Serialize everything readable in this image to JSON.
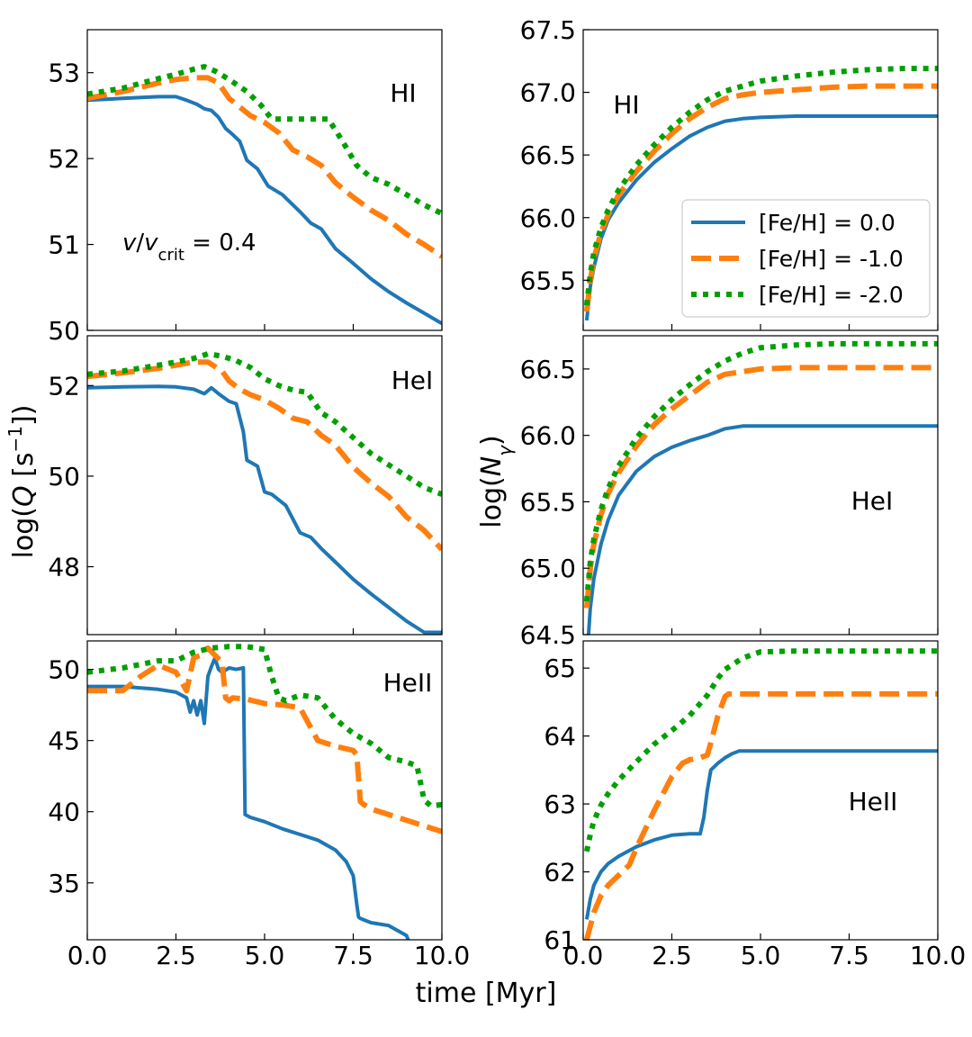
{
  "figure": {
    "xlabel": "time [Myr]",
    "ylabel_left": "log(Q [s⁻¹])",
    "ylabel_right": "log(Nγ)",
    "annotation_left": "v/v_crit = 0.4",
    "colors": {
      "solar": "#1f77b4",
      "m1": "#ff7f0e",
      "m2": "#00a000"
    }
  },
  "legend": [
    {
      "label": "[Fe/H] = 0.0",
      "style": "solid",
      "color": "#1f77b4"
    },
    {
      "label": "[Fe/H] = -1.0",
      "style": "dashed",
      "color": "#ff7f0e"
    },
    {
      "label": "[Fe/H] = -2.0",
      "style": "dotted",
      "color": "#00a000"
    }
  ],
  "chart_data": [
    {
      "type": "line",
      "panel": "Q-HI",
      "label": "HI",
      "xlim": [
        0,
        10
      ],
      "ylim": [
        50,
        53.5
      ],
      "yticks": [
        50,
        51,
        52,
        53
      ],
      "xticks": [
        0,
        2.5,
        5,
        7.5,
        10
      ],
      "xticklabels": [
        "0.0",
        "2.5",
        "5.0",
        "7.5",
        "10.0"
      ],
      "show_xticklabels": false,
      "annotation": "v/v_crit = 0.4",
      "series": [
        {
          "name": "[Fe/H] = 0.0",
          "x": [
            0,
            1,
            2,
            2.5,
            2.8,
            3.1,
            3.3,
            3.5,
            3.7,
            3.9,
            4.1,
            4.3,
            4.5,
            4.8,
            5.1,
            5.5,
            6,
            6.3,
            6.6,
            7,
            7.5,
            8,
            8.5,
            9,
            9.5,
            10
          ],
          "y": [
            52.68,
            52.7,
            52.72,
            52.72,
            52.68,
            52.63,
            52.58,
            52.56,
            52.48,
            52.35,
            52.28,
            52.2,
            51.98,
            51.88,
            51.68,
            51.58,
            51.38,
            51.25,
            51.18,
            50.95,
            50.78,
            50.6,
            50.45,
            50.32,
            50.2,
            50.08
          ]
        },
        {
          "name": "[Fe/H] = -1.0",
          "x": [
            0,
            1,
            2,
            2.5,
            3,
            3.4,
            3.7,
            4,
            4.3,
            4.6,
            5,
            5.4,
            5.8,
            6.2,
            6.6,
            7,
            7.5,
            8,
            8.5,
            9,
            9.5,
            10
          ],
          "y": [
            52.7,
            52.78,
            52.88,
            52.92,
            52.94,
            52.94,
            52.88,
            52.7,
            52.6,
            52.5,
            52.42,
            52.3,
            52.1,
            52.02,
            51.92,
            51.72,
            51.55,
            51.4,
            51.28,
            51.12,
            51.0,
            50.86
          ]
        },
        {
          "name": "[Fe/H] = -2.0",
          "x": [
            0,
            1,
            2,
            2.5,
            3,
            3.3,
            3.6,
            4,
            4.5,
            4.9,
            5.2,
            5.6,
            6,
            6.4,
            6.8,
            7.2,
            7.6,
            8,
            8.5,
            9,
            9.5,
            10
          ],
          "y": [
            52.75,
            52.82,
            52.93,
            52.98,
            53.04,
            53.07,
            53.02,
            52.92,
            52.78,
            52.62,
            52.46,
            52.46,
            52.46,
            52.46,
            52.46,
            52.2,
            51.92,
            51.78,
            51.7,
            51.58,
            51.46,
            51.36
          ]
        }
      ]
    },
    {
      "type": "line",
      "panel": "Q-HeI",
      "label": "HeI",
      "xlim": [
        0,
        10
      ],
      "ylim": [
        46.5,
        53.1
      ],
      "yticks": [
        48,
        50,
        52
      ],
      "xticks": [
        0,
        2.5,
        5,
        7.5,
        10
      ],
      "xticklabels": [
        "0.0",
        "2.5",
        "5.0",
        "7.5",
        "10.0"
      ],
      "show_xticklabels": false,
      "series": [
        {
          "name": "[Fe/H] = 0.0",
          "x": [
            0,
            1,
            2,
            2.5,
            3,
            3.3,
            3.5,
            3.7,
            4,
            4.2,
            4.4,
            4.5,
            4.8,
            5.0,
            5.2,
            5.6,
            6,
            6.3,
            6.6,
            7,
            7.5,
            8,
            8.5,
            9,
            9.5,
            10
          ],
          "y": [
            51.95,
            51.97,
            51.98,
            51.97,
            51.92,
            51.82,
            51.95,
            51.82,
            51.65,
            51.6,
            50.98,
            50.35,
            50.22,
            49.65,
            49.6,
            49.35,
            48.75,
            48.65,
            48.4,
            48.1,
            47.72,
            47.4,
            47.1,
            46.8,
            46.55,
            46.55
          ]
        },
        {
          "name": "[Fe/H] = -1.0",
          "x": [
            0,
            1,
            2,
            2.5,
            3,
            3.4,
            3.8,
            4,
            4.3,
            4.6,
            5,
            5.4,
            5.8,
            6.2,
            6.6,
            7,
            7.5,
            8,
            8.5,
            9,
            9.5,
            10
          ],
          "y": [
            52.2,
            52.28,
            52.38,
            52.45,
            52.52,
            52.52,
            52.32,
            52.1,
            51.92,
            51.8,
            51.68,
            51.5,
            51.28,
            51.2,
            50.9,
            50.68,
            50.2,
            49.85,
            49.55,
            49.1,
            48.8,
            48.38
          ]
        },
        {
          "name": "[Fe/H] = -2.0",
          "x": [
            0,
            1,
            2,
            2.5,
            3,
            3.4,
            3.8,
            4.2,
            4.6,
            5,
            5.4,
            5.8,
            6.2,
            6.6,
            7,
            7.5,
            8,
            8.5,
            9,
            9.5,
            10
          ],
          "y": [
            52.25,
            52.32,
            52.45,
            52.52,
            52.6,
            52.7,
            52.65,
            52.55,
            52.4,
            52.15,
            52.0,
            51.9,
            51.85,
            51.4,
            51.2,
            50.85,
            50.5,
            50.25,
            50.0,
            49.75,
            49.6
          ]
        }
      ]
    },
    {
      "type": "line",
      "panel": "Q-HeII",
      "label": "HeII",
      "xlim": [
        0,
        10
      ],
      "ylim": [
        31,
        52
      ],
      "yticks": [
        35,
        40,
        45,
        50
      ],
      "xticks": [
        0,
        2.5,
        5,
        7.5,
        10
      ],
      "xticklabels": [
        "0.0",
        "2.5",
        "5.0",
        "7.5",
        "10.0"
      ],
      "show_xticklabels": true,
      "series": [
        {
          "name": "[Fe/H] = 0.0",
          "x": [
            0,
            1,
            2,
            2.5,
            2.8,
            2.9,
            3.0,
            3.1,
            3.2,
            3.3,
            3.4,
            3.5,
            3.6,
            3.7,
            3.8,
            4.0,
            4.2,
            4.4,
            4.45,
            4.6,
            5.0,
            5.5,
            6,
            6.5,
            7,
            7.3,
            7.5,
            7.6,
            7.65,
            7.7,
            7.8,
            8,
            8.5,
            9,
            9.05
          ],
          "y": [
            48.8,
            48.8,
            48.6,
            48.4,
            48.0,
            47.0,
            47.8,
            46.8,
            47.8,
            46.2,
            49.5,
            50.2,
            50.8,
            50.0,
            49.8,
            50.1,
            50.0,
            50.1,
            39.8,
            39.6,
            39.3,
            38.8,
            38.4,
            38.0,
            37.3,
            36.5,
            35.5,
            33.5,
            32.6,
            32.5,
            32.4,
            32.2,
            32.0,
            31.3,
            31.0
          ]
        },
        {
          "name": "[Fe/H] = -1.0",
          "x": [
            0,
            1,
            1.5,
            2,
            2.5,
            2.8,
            3.0,
            3.2,
            3.4,
            3.6,
            3.8,
            3.9,
            4.0,
            4.1,
            4.5,
            5,
            5.5,
            6,
            6.5,
            7,
            7.5,
            7.6,
            7.7,
            7.8,
            8,
            8.5,
            9,
            9.5,
            10
          ],
          "y": [
            48.5,
            48.5,
            49.5,
            50.3,
            49.8,
            48.5,
            50.8,
            51.0,
            51.5,
            51.0,
            50.5,
            48.0,
            47.8,
            48.0,
            47.9,
            47.6,
            47.5,
            47.3,
            45.0,
            44.6,
            44.3,
            44.0,
            40.7,
            40.5,
            40.2,
            39.8,
            39.4,
            39.0,
            38.6
          ]
        },
        {
          "name": "[Fe/H] = -2.0",
          "x": [
            0,
            1,
            2,
            2.5,
            3,
            3.5,
            4,
            4.5,
            5,
            5.2,
            5.4,
            5.6,
            6,
            6.5,
            7,
            7.5,
            8,
            8.5,
            9,
            9.3,
            9.5,
            9.7,
            10
          ],
          "y": [
            49.8,
            50.1,
            50.6,
            50.6,
            51.2,
            51.5,
            51.6,
            51.6,
            51.4,
            49.5,
            48.0,
            47.8,
            48.2,
            48.0,
            46.5,
            45.5,
            44.8,
            43.8,
            43.5,
            43.2,
            40.8,
            40.4,
            40.5
          ]
        }
      ]
    },
    {
      "type": "line",
      "panel": "N-HI",
      "label": "HI",
      "xlim": [
        0,
        10
      ],
      "ylim": [
        65.1,
        67.5
      ],
      "yticks": [
        65.5,
        66.0,
        66.5,
        67.0,
        67.5
      ],
      "xticks": [
        0,
        2.5,
        5,
        7.5,
        10
      ],
      "xticklabels": [
        "0.0",
        "2.5",
        "5.0",
        "7.5",
        "10.0"
      ],
      "show_xticklabels": false,
      "series": [
        {
          "name": "[Fe/H] = 0.0",
          "x": [
            0.1,
            0.2,
            0.3,
            0.5,
            0.7,
            1,
            1.5,
            2,
            2.5,
            3,
            3.5,
            4,
            4.5,
            5,
            6,
            7,
            8,
            9,
            10
          ],
          "y": [
            65.18,
            65.45,
            65.6,
            65.83,
            65.98,
            66.12,
            66.3,
            66.44,
            66.55,
            66.65,
            66.72,
            66.77,
            66.79,
            66.8,
            66.81,
            66.81,
            66.81,
            66.81,
            66.81
          ]
        },
        {
          "name": "[Fe/H] = -1.0",
          "x": [
            0.1,
            0.2,
            0.3,
            0.5,
            0.7,
            1,
            1.5,
            2,
            2.5,
            3,
            3.5,
            4,
            4.5,
            5,
            6,
            7,
            8,
            9,
            10
          ],
          "y": [
            65.25,
            65.5,
            65.67,
            65.88,
            66.02,
            66.18,
            66.37,
            66.53,
            66.67,
            66.79,
            66.88,
            66.95,
            66.98,
            67.0,
            67.02,
            67.04,
            67.05,
            67.05,
            67.05
          ]
        },
        {
          "name": "[Fe/H] = -2.0",
          "x": [
            0.1,
            0.2,
            0.3,
            0.5,
            0.7,
            1,
            1.5,
            2,
            2.5,
            3,
            3.5,
            4,
            4.5,
            5,
            6,
            7,
            8,
            9,
            10
          ],
          "y": [
            65.3,
            65.55,
            65.72,
            65.92,
            66.06,
            66.22,
            66.42,
            66.58,
            66.72,
            66.84,
            66.94,
            67.01,
            67.05,
            67.09,
            67.13,
            67.16,
            67.18,
            67.19,
            67.19
          ]
        }
      ]
    },
    {
      "type": "line",
      "panel": "N-HeI",
      "label": "HeI",
      "xlim": [
        0,
        10
      ],
      "ylim": [
        64.5,
        66.75
      ],
      "yticks": [
        64.5,
        65.0,
        65.5,
        66.0,
        66.5
      ],
      "xticks": [
        0,
        2.5,
        5,
        7.5,
        10
      ],
      "xticklabels": [
        "0.0",
        "2.5",
        "5.0",
        "7.5",
        "10.0"
      ],
      "show_xticklabels": false,
      "series": [
        {
          "name": "[Fe/H] = 0.0",
          "x": [
            0.15,
            0.2,
            0.3,
            0.5,
            0.7,
            1,
            1.5,
            2,
            2.5,
            3,
            3.5,
            4,
            4.5,
            5,
            6,
            7,
            8,
            9,
            10
          ],
          "y": [
            64.5,
            64.7,
            64.92,
            65.18,
            65.36,
            65.55,
            65.73,
            65.84,
            65.91,
            65.96,
            66.0,
            66.05,
            66.07,
            66.07,
            66.07,
            66.07,
            66.07,
            66.07,
            66.07
          ]
        },
        {
          "name": "[Fe/H] = -1.0",
          "x": [
            0.1,
            0.2,
            0.3,
            0.5,
            0.7,
            1,
            1.5,
            2,
            2.5,
            3,
            3.5,
            4,
            4.5,
            5,
            6,
            7,
            8,
            9,
            10
          ],
          "y": [
            64.7,
            65.0,
            65.18,
            65.4,
            65.56,
            65.72,
            65.92,
            66.08,
            66.2,
            66.3,
            66.4,
            66.46,
            66.48,
            66.5,
            66.51,
            66.51,
            66.51,
            66.51,
            66.51
          ]
        },
        {
          "name": "[Fe/H] = -2.0",
          "x": [
            0.1,
            0.2,
            0.3,
            0.5,
            0.7,
            1,
            1.5,
            2,
            2.5,
            3,
            3.5,
            4,
            4.5,
            5,
            6,
            7,
            8,
            9,
            10
          ],
          "y": [
            64.75,
            65.05,
            65.22,
            65.44,
            65.6,
            65.77,
            65.98,
            66.14,
            66.27,
            66.38,
            66.48,
            66.56,
            66.62,
            66.66,
            66.68,
            66.69,
            66.69,
            66.69,
            66.69
          ]
        }
      ]
    },
    {
      "type": "line",
      "panel": "N-HeII",
      "label": "HeII",
      "xlim": [
        0,
        10
      ],
      "ylim": [
        61,
        65.4
      ],
      "yticks": [
        61,
        62,
        63,
        64,
        65
      ],
      "xticks": [
        0,
        2.5,
        5,
        7.5,
        10
      ],
      "xticklabels": [
        "0.0",
        "2.5",
        "5.0",
        "7.5",
        "10.0"
      ],
      "show_xticklabels": true,
      "series": [
        {
          "name": "[Fe/H] = 0.0",
          "x": [
            0.1,
            0.2,
            0.3,
            0.5,
            0.7,
            1,
            1.5,
            2,
            2.5,
            3,
            3.3,
            3.4,
            3.5,
            3.6,
            3.8,
            4.0,
            4.2,
            4.4,
            5,
            6,
            7,
            8,
            9,
            10
          ],
          "y": [
            61.3,
            61.6,
            61.8,
            62.0,
            62.12,
            62.23,
            62.37,
            62.47,
            62.54,
            62.56,
            62.56,
            62.8,
            63.2,
            63.5,
            63.6,
            63.68,
            63.74,
            63.78,
            63.78,
            63.78,
            63.78,
            63.78,
            63.78,
            63.78
          ]
        },
        {
          "name": "[Fe/H] = -1.0",
          "x": [
            0.1,
            0.2,
            0.3,
            0.5,
            0.7,
            1,
            1.3,
            1.5,
            2,
            2.5,
            2.8,
            3,
            3.3,
            3.5,
            3.6,
            3.8,
            4,
            4.1,
            5,
            6,
            7,
            8,
            9,
            10
          ],
          "y": [
            61.0,
            61.2,
            61.4,
            61.65,
            61.8,
            61.95,
            62.1,
            62.35,
            62.9,
            63.4,
            63.6,
            63.65,
            63.68,
            63.72,
            63.9,
            64.3,
            64.58,
            64.62,
            64.62,
            64.62,
            64.62,
            64.62,
            64.62,
            64.62
          ]
        },
        {
          "name": "[Fe/H] = -2.0",
          "x": [
            0.1,
            0.2,
            0.3,
            0.5,
            0.7,
            1,
            1.5,
            2,
            2.5,
            3,
            3.5,
            3.8,
            4,
            4.5,
            5,
            6,
            7,
            8,
            9,
            10
          ],
          "y": [
            62.3,
            62.55,
            62.75,
            62.98,
            63.15,
            63.35,
            63.62,
            63.88,
            64.08,
            64.3,
            64.6,
            64.85,
            64.98,
            65.15,
            65.24,
            65.25,
            65.25,
            65.25,
            65.25,
            65.25
          ]
        }
      ]
    }
  ]
}
